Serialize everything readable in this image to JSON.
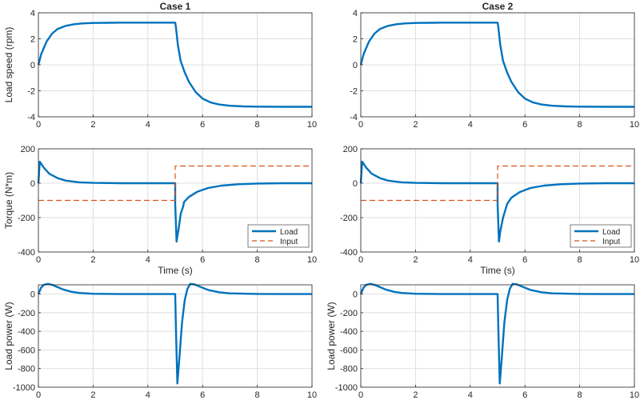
{
  "figure": {
    "panel_titles": [
      "Case 1",
      "Case 2"
    ],
    "colors": {
      "load": "#0072bd",
      "input": "#d95319",
      "grid": "#dfdfdf",
      "axis": "#262626"
    }
  },
  "chart_data": [
    {
      "type": "line",
      "title": "Case 1",
      "xlabel": "",
      "ylabel": "Load speed (rpm)",
      "xlim": [
        0,
        10
      ],
      "ylim": [
        -4,
        4
      ],
      "xticks": [
        0,
        2,
        4,
        6,
        8,
        10
      ],
      "yticks": [
        -4,
        -2,
        0,
        2,
        4
      ],
      "grid": true,
      "series": [
        {
          "values_x": [
            0,
            0.1,
            0.2,
            0.3,
            0.5,
            0.7,
            1.0,
            1.3,
            1.6,
            2.0,
            2.5,
            3.0,
            4.0,
            5.0,
            5.02,
            5.1,
            5.2,
            5.35,
            5.5,
            5.75,
            6.0,
            6.3,
            6.6,
            7.0,
            7.5,
            8.0,
            9.0,
            10.0
          ],
          "values_y": [
            0,
            0.8,
            1.3,
            1.8,
            2.4,
            2.75,
            3.0,
            3.12,
            3.18,
            3.22,
            3.23,
            3.24,
            3.24,
            3.24,
            3.0,
            1.5,
            0.3,
            -0.6,
            -1.3,
            -2.1,
            -2.6,
            -2.9,
            -3.05,
            -3.15,
            -3.2,
            -3.22,
            -3.23,
            -3.23
          ]
        }
      ]
    },
    {
      "type": "line",
      "title": "Case 2",
      "xlabel": "",
      "ylabel": "",
      "xlim": [
        0,
        10
      ],
      "ylim": [
        -4,
        4
      ],
      "xticks": [
        0,
        2,
        4,
        6,
        8,
        10
      ],
      "yticks": [
        -4,
        -2,
        0,
        2,
        4
      ],
      "grid": true,
      "series": [
        {
          "values_x": [
            0,
            0.1,
            0.2,
            0.3,
            0.5,
            0.7,
            1.0,
            1.3,
            1.6,
            2.0,
            2.5,
            3.0,
            4.0,
            5.0,
            5.02,
            5.1,
            5.2,
            5.35,
            5.5,
            5.75,
            6.0,
            6.3,
            6.6,
            7.0,
            7.5,
            8.0,
            9.0,
            10.0
          ],
          "values_y": [
            0,
            0.8,
            1.3,
            1.8,
            2.4,
            2.75,
            3.0,
            3.12,
            3.18,
            3.22,
            3.23,
            3.24,
            3.24,
            3.24,
            3.0,
            1.5,
            0.3,
            -0.6,
            -1.3,
            -2.1,
            -2.6,
            -2.9,
            -3.05,
            -3.15,
            -3.2,
            -3.22,
            -3.23,
            -3.23
          ]
        }
      ]
    },
    {
      "type": "line",
      "title": "",
      "xlabel": "Time (s)",
      "ylabel": "Torque (N*m)",
      "xlim": [
        0,
        10
      ],
      "ylim": [
        -400,
        200
      ],
      "xticks": [
        0,
        2,
        4,
        6,
        8,
        10
      ],
      "yticks": [
        -400,
        -200,
        0,
        200
      ],
      "grid": true,
      "legend": {
        "position": "bottom-right",
        "entries": [
          "Load",
          "Input"
        ]
      },
      "series": [
        {
          "name": "Load",
          "values_x": [
            0,
            0.05,
            0.2,
            0.4,
            0.7,
            1.0,
            1.5,
            2.0,
            3.0,
            4.0,
            5.0,
            5.0,
            5.05,
            5.1,
            5.15,
            5.2,
            5.3,
            5.32,
            5.5,
            5.8,
            6.2,
            6.7,
            7.3,
            8.0,
            9.0,
            10.0
          ],
          "values_y": [
            0,
            125,
            90,
            55,
            30,
            15,
            5,
            2,
            0,
            0,
            0,
            -120,
            -340,
            -290,
            -240,
            -180,
            -130,
            -110,
            -80,
            -50,
            -28,
            -14,
            -6,
            -2,
            0,
            0
          ]
        },
        {
          "name": "Input",
          "values_x": [
            0,
            5.0,
            5.0,
            10.0
          ],
          "values_y": [
            -100,
            -100,
            100,
            100
          ]
        }
      ]
    },
    {
      "type": "line",
      "title": "",
      "xlabel": "Time (s)",
      "ylabel": "",
      "xlim": [
        0,
        10
      ],
      "ylim": [
        -400,
        200
      ],
      "xticks": [
        0,
        2,
        4,
        6,
        8,
        10
      ],
      "yticks": [
        -400,
        -200,
        0,
        200
      ],
      "grid": true,
      "legend": {
        "position": "bottom-right",
        "entries": [
          "Load",
          "Input"
        ]
      },
      "series": [
        {
          "name": "Load",
          "values_x": [
            0,
            0.05,
            0.2,
            0.4,
            0.7,
            1.0,
            1.5,
            2.0,
            3.0,
            4.0,
            5.0,
            5.0,
            5.05,
            5.1,
            5.2,
            5.35,
            5.5,
            5.8,
            6.2,
            6.7,
            7.3,
            8.0,
            9.0,
            10.0
          ],
          "values_y": [
            0,
            125,
            90,
            55,
            30,
            15,
            5,
            2,
            0,
            0,
            0,
            -120,
            -340,
            -280,
            -200,
            -120,
            -85,
            -52,
            -28,
            -14,
            -6,
            -2,
            0,
            0
          ]
        },
        {
          "name": "Input",
          "values_x": [
            0,
            5.0,
            5.0,
            10.0
          ],
          "values_y": [
            -100,
            -100,
            100,
            100
          ]
        }
      ]
    },
    {
      "type": "line",
      "title": "",
      "xlabel": "",
      "ylabel": "Load power (W)",
      "xlim": [
        0,
        10
      ],
      "ylim": [
        -1000,
        100
      ],
      "xticks": [
        0,
        2,
        4,
        6,
        8,
        10
      ],
      "yticks": [
        -1000,
        -800,
        -600,
        -400,
        -200,
        0
      ],
      "grid": true,
      "series": [
        {
          "values_x": [
            0,
            0.1,
            0.2,
            0.35,
            0.5,
            0.7,
            0.9,
            1.2,
            1.5,
            2.0,
            3.0,
            4.0,
            5.0,
            5.03,
            5.08,
            5.15,
            5.25,
            5.35,
            5.45,
            5.55,
            5.7,
            5.9,
            6.2,
            6.6,
            7.0,
            8.0,
            9.0,
            10.0
          ],
          "values_y": [
            0,
            70,
            100,
            110,
            100,
            75,
            50,
            25,
            12,
            4,
            0,
            0,
            0,
            -400,
            -960,
            -700,
            -300,
            -60,
            60,
            110,
            105,
            80,
            45,
            20,
            8,
            2,
            0,
            0
          ]
        }
      ]
    },
    {
      "type": "line",
      "title": "",
      "xlabel": "",
      "ylabel": "Load power (W)",
      "xlim": [
        0,
        10
      ],
      "ylim": [
        -1000,
        100
      ],
      "xticks": [
        0,
        2,
        4,
        6,
        8,
        10
      ],
      "yticks": [
        -1000,
        -800,
        -600,
        -400,
        -200,
        0
      ],
      "grid": true,
      "series": [
        {
          "values_x": [
            0,
            0.1,
            0.2,
            0.35,
            0.5,
            0.7,
            0.9,
            1.2,
            1.5,
            2.0,
            3.0,
            4.0,
            5.0,
            5.03,
            5.08,
            5.15,
            5.25,
            5.35,
            5.45,
            5.55,
            5.7,
            5.9,
            6.2,
            6.6,
            7.0,
            8.0,
            9.0,
            10.0
          ],
          "values_y": [
            0,
            70,
            100,
            110,
            100,
            75,
            50,
            25,
            12,
            4,
            0,
            0,
            0,
            -400,
            -960,
            -700,
            -300,
            -60,
            60,
            110,
            105,
            80,
            45,
            20,
            8,
            2,
            0,
            0
          ]
        }
      ]
    }
  ]
}
